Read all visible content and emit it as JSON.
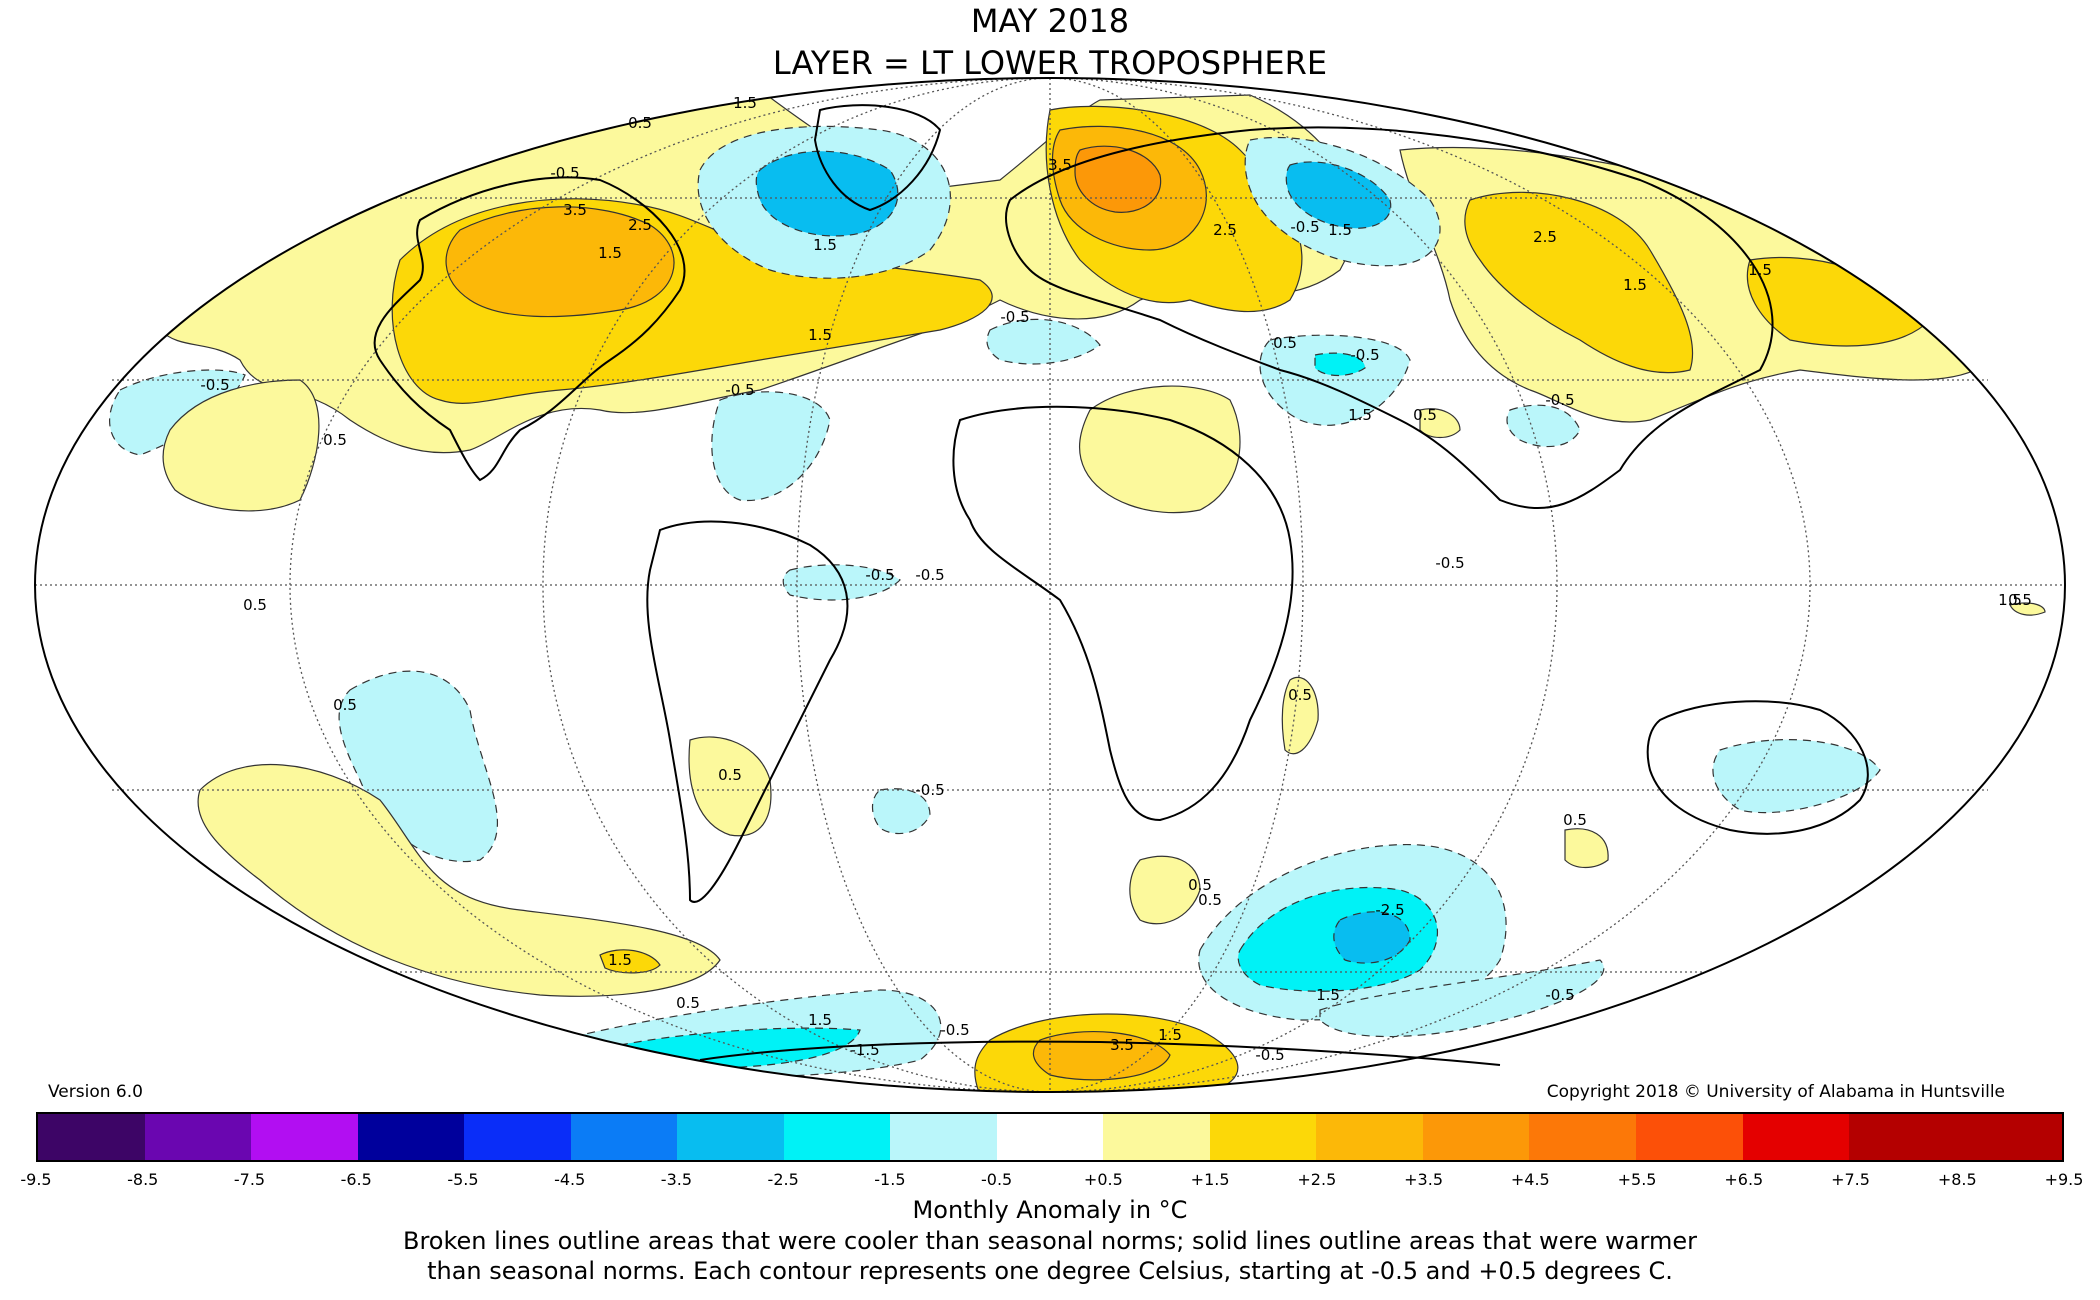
{
  "title": {
    "line1": "MAY 2018",
    "line2": "LAYER = LT LOWER TROPOSPHERE"
  },
  "version": "Version 6.0",
  "copyright": "Copyright 2018 © University of Alabama in Huntsville",
  "colorbar": {
    "colors": [
      "#3d0566",
      "#6a06b0",
      "#b20ef2",
      "#00009c",
      "#0a2df8",
      "#0b7cf6",
      "#08bdf0",
      "#00f2f6",
      "#baf6fa",
      "#ffffff",
      "#fcf99c",
      "#fcd808",
      "#fcb808",
      "#fc9808",
      "#fc7808",
      "#fc5008",
      "#e40000",
      "#b40000",
      "#fcf1a0"
    ],
    "ticks": [
      "-9.5",
      "-8.5",
      "-7.5",
      "-6.5",
      "-5.5",
      "-4.5",
      "-3.5",
      "-2.5",
      "-1.5",
      "-0.5",
      "+0.5",
      "+1.5",
      "+2.5",
      "+3.5",
      "+4.5",
      "+5.5",
      "+6.5",
      "+7.5",
      "+8.5",
      "+9.5"
    ],
    "label": "Monthly Anomaly in °C"
  },
  "note": {
    "line1": "Broken lines outline areas that were cooler than seasonal norms; solid lines outline areas that were warmer",
    "line2": "than seasonal norms. Each contour represents one degree Celsius, starting at -0.5 and +0.5 degrees C."
  },
  "contour_labels": [
    {
      "text": "1.5"
    },
    {
      "text": "0.5"
    },
    {
      "text": "-0.5"
    },
    {
      "text": "3.5"
    },
    {
      "text": "2.5"
    },
    {
      "text": "1.5"
    },
    {
      "text": "-0.5"
    },
    {
      "text": "1.5"
    },
    {
      "text": "0.5"
    },
    {
      "text": "-0.5"
    },
    {
      "text": "0.5"
    },
    {
      "text": "-0.5"
    },
    {
      "text": "1.5"
    },
    {
      "text": "-0.5"
    },
    {
      "text": "3.5"
    },
    {
      "text": "2.5"
    },
    {
      "text": "1.5"
    },
    {
      "text": "-0.5"
    },
    {
      "text": "1.5"
    },
    {
      "text": "0.5"
    },
    {
      "text": "-0.5"
    },
    {
      "text": "1.5"
    },
    {
      "text": "2.5"
    },
    {
      "text": "1.5"
    },
    {
      "text": "0.5"
    },
    {
      "text": "-0.5"
    },
    {
      "text": "0.5"
    },
    {
      "text": "0.5"
    },
    {
      "text": "-0.5"
    },
    {
      "text": "0.5"
    },
    {
      "text": "-0.5"
    },
    {
      "text": "0.5"
    },
    {
      "text": "0.5"
    },
    {
      "text": "-0.5"
    },
    {
      "text": "1.5"
    },
    {
      "text": "0.5"
    },
    {
      "text": "-2.5"
    },
    {
      "text": "1.5"
    },
    {
      "text": "-0.5"
    },
    {
      "text": "3.5"
    },
    {
      "text": "1.5"
    },
    {
      "text": "-0.5"
    },
    {
      "text": "1.5"
    },
    {
      "text": "-1.5"
    },
    {
      "text": "-0.5"
    },
    {
      "text": "0.5"
    },
    {
      "text": "1.5"
    },
    {
      "text": "0.5"
    }
  ]
}
